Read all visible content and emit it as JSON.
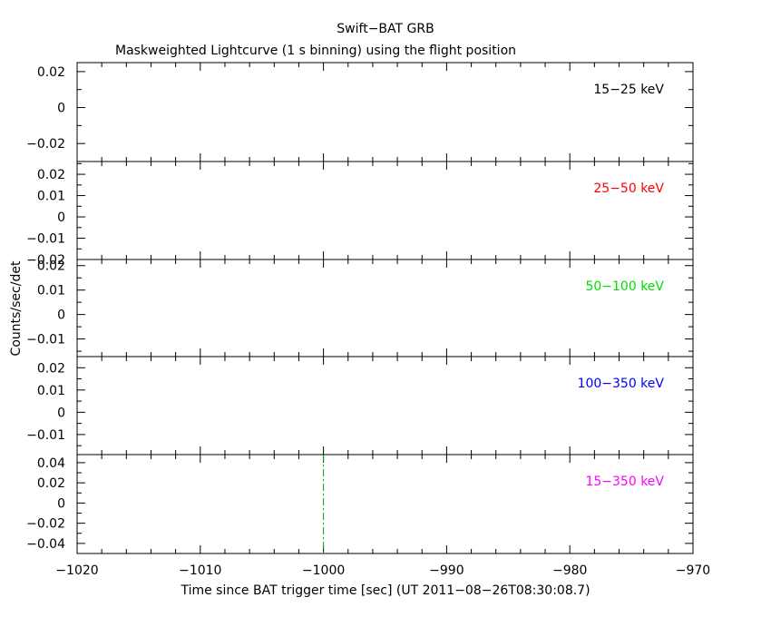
{
  "chart_data": {
    "type": "line",
    "title": "Swift−BAT GRB",
    "subtitle": "Maskweighted Lightcurve (1 s binning) using the flight position",
    "xlabel": "Time since BAT trigger time [sec] (UT 2011−08−26T08:30:08.7)",
    "ylabel": "Counts/sec/det",
    "xlim": [
      -1020,
      -970
    ],
    "x_ticks": [
      -1020,
      -1010,
      -1000,
      -990,
      -980,
      -970
    ],
    "x_tick_labels": [
      "−1020",
      "−1010",
      "−1000",
      "−990",
      "−980",
      "−970"
    ],
    "marker_line": {
      "x": -1000,
      "color": "#00aa00"
    },
    "panels": [
      {
        "band": "15−25 keV",
        "color": "#000000",
        "ylim": [
          -0.03,
          0.025
        ],
        "ticks": [
          -0.02,
          0,
          0.02
        ],
        "tick_labels": [
          "−0.02",
          "0",
          "0.02"
        ]
      },
      {
        "band": "25−50 keV",
        "color": "#ff0000",
        "ylim": [
          -0.02,
          0.026
        ],
        "ticks": [
          -0.02,
          -0.01,
          0,
          0.01,
          0.02
        ],
        "tick_labels": [
          "−0.02",
          "−0.01",
          "0",
          "0.01",
          "0.02"
        ]
      },
      {
        "band": "50−100 keV",
        "color": "#00dd00",
        "ylim": [
          -0.0172,
          0.0225
        ],
        "ticks": [
          -0.01,
          0,
          0.01,
          0.02
        ],
        "tick_labels": [
          "−0.01",
          "0",
          "0.01",
          "0.02"
        ]
      },
      {
        "band": "100−350 keV",
        "color": "#0000ff",
        "ylim": [
          -0.019,
          0.025
        ],
        "ticks": [
          -0.01,
          0,
          0.01,
          0.02
        ],
        "tick_labels": [
          "−0.01",
          "0",
          "0.01",
          "0.02"
        ]
      },
      {
        "band": "15−350 keV",
        "color": "#ff00ff",
        "ylim": [
          -0.05,
          0.048
        ],
        "ticks": [
          -0.04,
          -0.02,
          0,
          0.02,
          0.04
        ],
        "tick_labels": [
          "−0.04",
          "−0.02",
          "0",
          "0.02",
          "0.04"
        ]
      }
    ]
  }
}
